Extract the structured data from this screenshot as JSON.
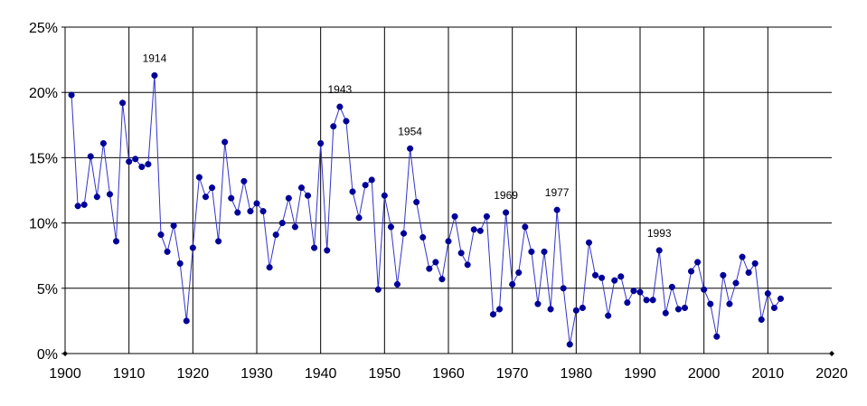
{
  "chart_data": {
    "type": "line",
    "title": "",
    "xlabel": "",
    "ylabel": "",
    "xlim": [
      1900,
      2020
    ],
    "ylim": [
      0,
      25
    ],
    "x_ticks": [
      {
        "value": 1900,
        "label": "1900"
      },
      {
        "value": 1910,
        "label": "1910"
      },
      {
        "value": 1920,
        "label": "1920"
      },
      {
        "value": 1930,
        "label": "1930"
      },
      {
        "value": 1940,
        "label": "1940"
      },
      {
        "value": 1950,
        "label": "1950"
      },
      {
        "value": 1960,
        "label": "1960"
      },
      {
        "value": 1970,
        "label": "1970"
      },
      {
        "value": 1980,
        "label": "1980"
      },
      {
        "value": 1990,
        "label": "1990"
      },
      {
        "value": 2000,
        "label": "2000"
      },
      {
        "value": 2010,
        "label": "2010"
      },
      {
        "value": 2020,
        "label": "2020"
      }
    ],
    "y_ticks": [
      {
        "value": 0,
        "label": "0%"
      },
      {
        "value": 5,
        "label": "5%"
      },
      {
        "value": 10,
        "label": "10%"
      },
      {
        "value": 15,
        "label": "15%"
      },
      {
        "value": 20,
        "label": "20%"
      },
      {
        "value": 25,
        "label": "25%"
      }
    ],
    "grid": true,
    "legend": "none",
    "colors": {
      "line": "#3333cc",
      "marker": "#000099",
      "grid": "#000000"
    },
    "series": [
      {
        "x": [
          1901,
          1902,
          1903,
          1904,
          1905,
          1906,
          1907,
          1908,
          1909,
          1910,
          1911,
          1912,
          1913,
          1914,
          1915,
          1916,
          1917,
          1918,
          1919,
          1920,
          1921,
          1922,
          1923,
          1924,
          1925,
          1926,
          1927,
          1928,
          1929,
          1930,
          1931,
          1932,
          1933,
          1934,
          1935,
          1936,
          1937,
          1938,
          1939,
          1940,
          1941,
          1942,
          1943,
          1944,
          1945,
          1946,
          1947,
          1948,
          1949,
          1950,
          1951,
          1952,
          1953,
          1954,
          1955,
          1956,
          1957,
          1958,
          1959,
          1960,
          1961,
          1962,
          1963,
          1964,
          1965,
          1966,
          1967,
          1968,
          1969,
          1970,
          1971,
          1972,
          1973,
          1974,
          1975,
          1976,
          1977,
          1978,
          1979,
          1980,
          1981,
          1982,
          1983,
          1984,
          1985,
          1986,
          1987,
          1988,
          1989,
          1990,
          1991,
          1992,
          1993,
          1994,
          1995,
          1996,
          1997,
          1998,
          1999,
          2000,
          2001,
          2002,
          2003,
          2004,
          2005,
          2006,
          2007,
          2008,
          2009,
          2010,
          2011,
          2012
        ],
        "y": [
          19.8,
          11.3,
          11.4,
          15.1,
          12.0,
          16.1,
          12.2,
          8.6,
          19.2,
          14.7,
          14.9,
          14.3,
          14.5,
          21.3,
          9.1,
          7.8,
          9.8,
          6.9,
          2.5,
          8.1,
          13.5,
          12.0,
          12.7,
          8.6,
          16.2,
          11.9,
          10.8,
          13.2,
          10.9,
          11.5,
          10.9,
          6.6,
          9.1,
          10.0,
          11.9,
          9.7,
          12.7,
          12.1,
          8.1,
          16.1,
          7.9,
          17.4,
          18.9,
          17.8,
          12.4,
          10.4,
          12.9,
          13.3,
          4.9,
          12.1,
          9.7,
          5.3,
          9.2,
          15.7,
          11.6,
          8.9,
          6.5,
          7.0,
          5.7,
          8.6,
          10.5,
          7.7,
          6.8,
          9.5,
          9.4,
          10.5,
          3.0,
          3.4,
          10.8,
          5.3,
          6.2,
          9.7,
          7.8,
          3.8,
          7.8,
          3.4,
          11.0,
          5.0,
          0.7,
          3.3,
          3.5,
          8.5,
          6.0,
          5.8,
          2.9,
          5.6,
          5.9,
          3.9,
          4.8,
          4.7,
          4.1,
          4.1,
          7.9,
          3.1,
          5.1,
          3.4,
          3.5,
          6.3,
          7.0,
          4.9,
          3.8,
          1.3,
          6.0,
          3.8,
          5.4,
          7.4,
          6.2,
          6.9,
          2.6,
          4.6,
          3.5,
          4.2
        ]
      }
    ],
    "annotations": [
      {
        "x": 1914,
        "y": 21.3,
        "text": "1914"
      },
      {
        "x": 1943,
        "y": 18.9,
        "text": "1943"
      },
      {
        "x": 1954,
        "y": 15.7,
        "text": "1954"
      },
      {
        "x": 1969,
        "y": 10.8,
        "text": "1969"
      },
      {
        "x": 1977,
        "y": 11.0,
        "text": "1977"
      },
      {
        "x": 1993,
        "y": 7.9,
        "text": "1993"
      }
    ]
  }
}
